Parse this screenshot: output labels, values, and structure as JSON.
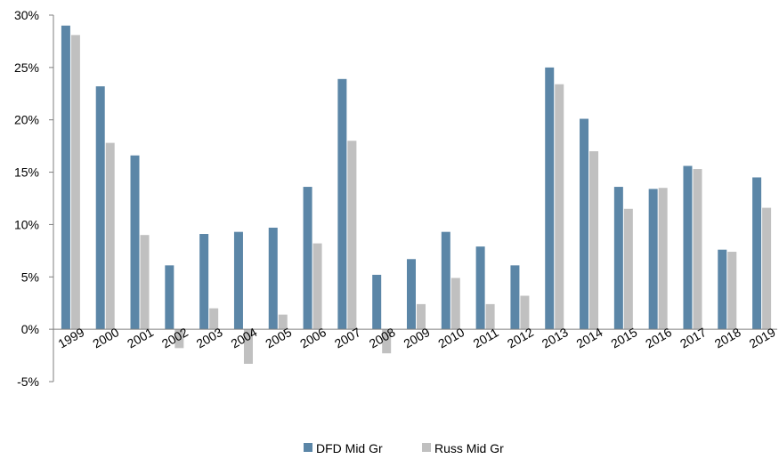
{
  "chart_data": {
    "type": "bar",
    "categories": [
      "1999",
      "2000",
      "2001",
      "2002",
      "2003",
      "2004",
      "2005",
      "2006",
      "2007",
      "2008",
      "2009",
      "2010",
      "2011",
      "2012",
      "2013",
      "2014",
      "2015",
      "2016",
      "2017",
      "2018",
      "2019"
    ],
    "series": [
      {
        "name": "DFD Mid Gr",
        "color": "#5B86A7",
        "values": [
          29.0,
          23.2,
          16.6,
          6.1,
          9.1,
          9.3,
          9.7,
          13.6,
          23.9,
          5.2,
          6.7,
          9.3,
          7.9,
          6.1,
          25.0,
          20.1,
          13.6,
          13.4,
          15.6,
          7.6,
          14.5
        ]
      },
      {
        "name": "Russ Mid Gr",
        "color": "#C0C0C0",
        "values": [
          28.1,
          17.8,
          9.0,
          -1.8,
          2.0,
          -3.3,
          1.4,
          8.2,
          18.0,
          -2.3,
          2.4,
          4.9,
          2.4,
          3.2,
          23.4,
          17.0,
          11.5,
          13.5,
          15.3,
          7.4,
          11.6
        ]
      }
    ],
    "yticks": [
      "30%",
      "25%",
      "20%",
      "15%",
      "10%",
      "5%",
      "0%",
      "-5%"
    ],
    "ylim": [
      -5,
      30
    ],
    "title": "",
    "xlabel": "",
    "ylabel": "",
    "grid": false,
    "legend": "bottom-center"
  }
}
